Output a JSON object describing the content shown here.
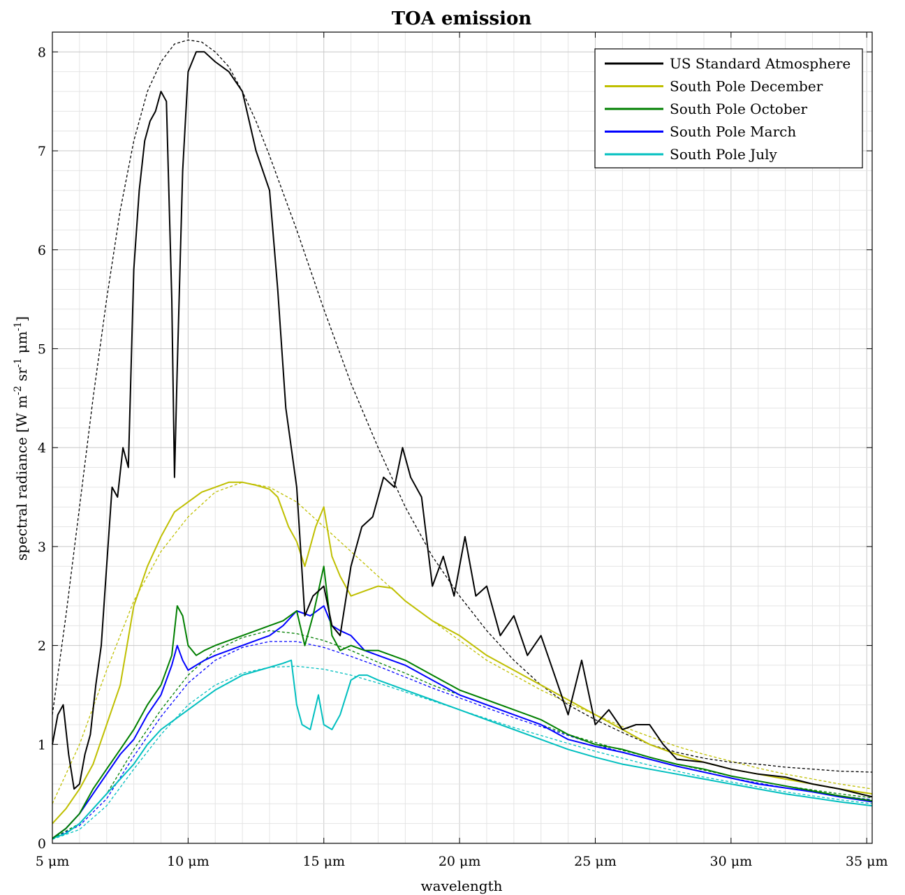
{
  "chart_data": {
    "type": "line",
    "title": "TOA emission",
    "xlabel": "wavelength",
    "ylabel": "spectral radiance [W m-2 sr-1 μm-1]",
    "ylabel_parts": [
      "spectral radiance [W m",
      "-2",
      " sr",
      "-1",
      " μm",
      "-1",
      "]"
    ],
    "xlim": [
      5,
      35.2
    ],
    "ylim": [
      0,
      8.2
    ],
    "x_ticks": [
      5,
      10,
      15,
      20,
      25,
      30,
      35
    ],
    "x_tick_labels": [
      "5 μm",
      "10 μm",
      "15 μm",
      "20 μm",
      "25 μm",
      "30 μm",
      "35 μm"
    ],
    "y_ticks": [
      0,
      1,
      2,
      3,
      4,
      5,
      6,
      7,
      8
    ],
    "y_tick_labels": [
      "0",
      "1",
      "2",
      "3",
      "4",
      "5",
      "6",
      "7",
      "8"
    ],
    "grid": true,
    "minor_grid": true,
    "legend_position": "top-right",
    "series": [
      {
        "name": "US Standard Atmosphere",
        "color": "#000000",
        "style": "solid",
        "x": [
          5.0,
          5.2,
          5.4,
          5.6,
          5.8,
          6.0,
          6.2,
          6.4,
          6.6,
          6.8,
          7.0,
          7.2,
          7.4,
          7.6,
          7.8,
          8.0,
          8.2,
          8.4,
          8.6,
          8.8,
          9.0,
          9.2,
          9.4,
          9.5,
          9.6,
          9.8,
          10.0,
          10.3,
          10.6,
          11.0,
          11.5,
          12.0,
          12.5,
          13.0,
          13.3,
          13.6,
          13.8,
          14.0,
          14.3,
          14.6,
          15.0,
          15.3,
          15.6,
          16.0,
          16.4,
          16.8,
          17.2,
          17.6,
          17.9,
          18.2,
          18.6,
          19.0,
          19.4,
          19.8,
          20.2,
          20.6,
          21.0,
          21.5,
          22.0,
          22.5,
          23.0,
          23.5,
          24.0,
          24.5,
          25.0,
          25.5,
          26.0,
          26.5,
          27.0,
          27.5,
          28.0,
          29.0,
          30.0,
          31.0,
          32.0,
          33.0,
          34.0,
          35.2
        ],
        "values": [
          1.0,
          1.3,
          1.4,
          0.9,
          0.55,
          0.6,
          0.9,
          1.1,
          1.6,
          2.0,
          2.8,
          3.6,
          3.5,
          4.0,
          3.8,
          5.8,
          6.6,
          7.1,
          7.3,
          7.4,
          7.6,
          7.5,
          5.5,
          3.7,
          4.8,
          6.8,
          7.8,
          8.0,
          8.0,
          7.9,
          7.8,
          7.6,
          7.0,
          6.6,
          5.6,
          4.4,
          4.0,
          3.6,
          2.3,
          2.5,
          2.6,
          2.2,
          2.1,
          2.8,
          3.2,
          3.3,
          3.7,
          3.6,
          4.0,
          3.7,
          3.5,
          2.6,
          2.9,
          2.5,
          3.1,
          2.5,
          2.6,
          2.1,
          2.3,
          1.9,
          2.1,
          1.7,
          1.3,
          1.85,
          1.2,
          1.35,
          1.15,
          1.2,
          1.2,
          1.0,
          0.85,
          0.82,
          0.75,
          0.7,
          0.67,
          0.6,
          0.55,
          0.47
        ]
      },
      {
        "name": "South Pole December",
        "color": "#bfbf00",
        "style": "solid",
        "x": [
          5.0,
          5.5,
          6.0,
          6.5,
          7.0,
          7.5,
          8.0,
          8.5,
          9.0,
          9.5,
          10.0,
          10.5,
          11.0,
          11.5,
          12.0,
          12.5,
          13.0,
          13.3,
          13.7,
          14.0,
          14.3,
          14.7,
          15.0,
          15.3,
          15.6,
          16.0,
          16.5,
          17.0,
          17.5,
          18.0,
          19.0,
          20.0,
          21.0,
          22.0,
          23.0,
          24.0,
          25.0,
          26.0,
          27.0,
          28.0,
          29.0,
          30.0,
          31.0,
          32.0,
          33.0,
          34.0,
          35.2
        ],
        "values": [
          0.2,
          0.35,
          0.55,
          0.8,
          1.2,
          1.6,
          2.4,
          2.8,
          3.1,
          3.35,
          3.45,
          3.55,
          3.6,
          3.65,
          3.65,
          3.62,
          3.58,
          3.5,
          3.2,
          3.05,
          2.8,
          3.2,
          3.4,
          2.9,
          2.7,
          2.5,
          2.55,
          2.6,
          2.58,
          2.45,
          2.25,
          2.1,
          1.9,
          1.75,
          1.6,
          1.45,
          1.3,
          1.15,
          1.0,
          0.9,
          0.82,
          0.75,
          0.7,
          0.65,
          0.6,
          0.55,
          0.5
        ]
      },
      {
        "name": "South Pole October",
        "color": "#007f00",
        "style": "solid",
        "x": [
          5.0,
          5.5,
          6.0,
          6.5,
          7.0,
          7.5,
          8.0,
          8.5,
          9.0,
          9.4,
          9.6,
          9.8,
          10.0,
          10.3,
          10.6,
          11.0,
          12.0,
          13.0,
          13.5,
          14.0,
          14.3,
          14.6,
          15.0,
          15.3,
          15.6,
          16.0,
          16.5,
          17.0,
          18.0,
          19.0,
          20.0,
          21.0,
          22.0,
          23.0,
          24.0,
          25.0,
          26.0,
          27.0,
          28.0,
          29.0,
          30.0,
          31.0,
          32.0,
          33.0,
          34.0,
          35.2
        ],
        "values": [
          0.05,
          0.15,
          0.3,
          0.55,
          0.75,
          0.95,
          1.15,
          1.4,
          1.6,
          1.9,
          2.4,
          2.3,
          2.0,
          1.9,
          1.95,
          2.0,
          2.1,
          2.2,
          2.25,
          2.35,
          2.0,
          2.3,
          2.8,
          2.1,
          1.95,
          2.0,
          1.95,
          1.95,
          1.85,
          1.7,
          1.55,
          1.45,
          1.35,
          1.25,
          1.1,
          1.0,
          0.95,
          0.87,
          0.8,
          0.75,
          0.68,
          0.63,
          0.58,
          0.53,
          0.48,
          0.43
        ]
      },
      {
        "name": "South Pole March",
        "color": "#0000ff",
        "style": "solid",
        "x": [
          5.0,
          5.5,
          6.0,
          6.5,
          7.0,
          7.5,
          8.0,
          8.5,
          9.0,
          9.4,
          9.6,
          9.8,
          10.0,
          10.3,
          10.6,
          11.0,
          12.0,
          13.0,
          13.5,
          14.0,
          14.5,
          15.0,
          15.3,
          15.6,
          16.0,
          16.5,
          17.0,
          18.0,
          19.0,
          20.0,
          21.0,
          22.0,
          23.0,
          24.0,
          25.0,
          26.0,
          27.0,
          28.0,
          29.0,
          30.0,
          31.0,
          32.0,
          33.0,
          34.0,
          35.2
        ],
        "values": [
          0.05,
          0.15,
          0.3,
          0.5,
          0.7,
          0.9,
          1.05,
          1.3,
          1.5,
          1.8,
          2.0,
          1.85,
          1.75,
          1.8,
          1.85,
          1.9,
          2.0,
          2.1,
          2.2,
          2.35,
          2.3,
          2.4,
          2.2,
          2.15,
          2.1,
          1.95,
          1.9,
          1.8,
          1.65,
          1.5,
          1.4,
          1.3,
          1.2,
          1.05,
          0.98,
          0.92,
          0.85,
          0.78,
          0.72,
          0.66,
          0.6,
          0.56,
          0.52,
          0.47,
          0.42
        ]
      },
      {
        "name": "South Pole July",
        "color": "#00bfbf",
        "style": "solid",
        "x": [
          5.0,
          5.5,
          6.0,
          6.5,
          7.0,
          7.5,
          8.0,
          8.5,
          9.0,
          9.5,
          10.0,
          10.5,
          11.0,
          12.0,
          13.0,
          13.5,
          13.8,
          14.0,
          14.2,
          14.5,
          14.8,
          15.0,
          15.3,
          15.6,
          16.0,
          16.3,
          16.6,
          17.0,
          18.0,
          19.0,
          20.0,
          21.0,
          22.0,
          23.0,
          24.0,
          25.0,
          26.0,
          27.0,
          28.0,
          29.0,
          30.0,
          31.0,
          32.0,
          33.0,
          34.0,
          35.2
        ],
        "values": [
          0.05,
          0.1,
          0.2,
          0.35,
          0.5,
          0.65,
          0.8,
          1.0,
          1.15,
          1.25,
          1.35,
          1.45,
          1.55,
          1.7,
          1.78,
          1.82,
          1.85,
          1.4,
          1.2,
          1.15,
          1.5,
          1.2,
          1.15,
          1.3,
          1.65,
          1.7,
          1.7,
          1.65,
          1.55,
          1.45,
          1.35,
          1.25,
          1.15,
          1.05,
          0.95,
          0.87,
          0.8,
          0.75,
          0.7,
          0.65,
          0.6,
          0.55,
          0.5,
          0.46,
          0.42,
          0.38
        ]
      },
      {
        "name": "",
        "color": "#000000",
        "style": "dashed",
        "x": [
          5.0,
          5.5,
          6.0,
          6.5,
          7.0,
          7.5,
          8.0,
          8.5,
          9.0,
          9.5,
          10.0,
          10.5,
          11.0,
          11.5,
          12.0,
          12.5,
          13.0,
          14.0,
          15.0,
          16.0,
          17.0,
          18.0,
          19.0,
          20.0,
          21.0,
          22.0,
          23.0,
          24.0,
          25.0,
          26.0,
          27.0,
          28.0,
          29.0,
          30.0,
          31.0,
          32.0,
          33.0,
          34.0,
          35.2
        ],
        "values": [
          1.3,
          2.3,
          3.4,
          4.5,
          5.5,
          6.4,
          7.1,
          7.6,
          7.9,
          8.08,
          8.12,
          8.1,
          8.0,
          7.85,
          7.6,
          7.3,
          6.95,
          6.2,
          5.4,
          4.65,
          4.0,
          3.4,
          2.9,
          2.5,
          2.15,
          1.85,
          1.6,
          1.4,
          1.25,
          1.12,
          1.0,
          0.92,
          0.86,
          0.82,
          0.8,
          0.77,
          0.75,
          0.73,
          0.72
        ]
      },
      {
        "name": "",
        "color": "#bfbf00",
        "style": "dashed",
        "x": [
          5.0,
          6.0,
          7.0,
          8.0,
          9.0,
          10.0,
          11.0,
          12.0,
          13.0,
          14.0,
          15.0,
          16.0,
          17.0,
          18.0,
          19.0,
          20.0,
          21.0,
          22.0,
          23.0,
          24.0,
          25.0,
          26.0,
          27.0,
          28.0,
          29.0,
          30.0,
          31.0,
          32.0,
          33.0,
          34.0,
          35.2
        ],
        "values": [
          0.4,
          1.0,
          1.75,
          2.45,
          2.95,
          3.3,
          3.55,
          3.65,
          3.6,
          3.45,
          3.2,
          2.95,
          2.7,
          2.45,
          2.25,
          2.05,
          1.85,
          1.7,
          1.55,
          1.42,
          1.3,
          1.18,
          1.08,
          0.98,
          0.9,
          0.83,
          0.76,
          0.7,
          0.65,
          0.6,
          0.55
        ]
      },
      {
        "name": "",
        "color": "#007f00",
        "style": "dashed",
        "x": [
          5.0,
          6.0,
          7.0,
          8.0,
          9.0,
          10.0,
          11.0,
          12.0,
          13.0,
          14.0,
          15.0,
          16.0,
          17.0,
          18.0,
          19.0,
          20.0,
          21.0,
          22.0,
          23.0,
          24.0,
          25.0,
          26.0,
          27.0,
          28.0,
          29.0,
          30.0,
          31.0,
          32.0,
          33.0,
          34.0,
          35.2
        ],
        "values": [
          0.05,
          0.2,
          0.5,
          0.95,
          1.35,
          1.7,
          1.95,
          2.08,
          2.15,
          2.12,
          2.05,
          1.95,
          1.83,
          1.72,
          1.6,
          1.5,
          1.4,
          1.3,
          1.2,
          1.1,
          1.02,
          0.94,
          0.87,
          0.8,
          0.74,
          0.68,
          0.63,
          0.58,
          0.54,
          0.5,
          0.46
        ]
      },
      {
        "name": "",
        "color": "#0000ff",
        "style": "dashed",
        "x": [
          5.0,
          6.0,
          7.0,
          8.0,
          9.0,
          10.0,
          11.0,
          12.0,
          13.0,
          14.0,
          15.0,
          16.0,
          17.0,
          18.0,
          19.0,
          20.0,
          21.0,
          22.0,
          23.0,
          24.0,
          25.0,
          26.0,
          27.0,
          28.0,
          29.0,
          30.0,
          31.0,
          32.0,
          33.0,
          34.0,
          35.2
        ],
        "values": [
          0.05,
          0.18,
          0.45,
          0.88,
          1.28,
          1.62,
          1.85,
          1.98,
          2.04,
          2.04,
          1.98,
          1.89,
          1.79,
          1.68,
          1.57,
          1.47,
          1.37,
          1.27,
          1.18,
          1.09,
          1.0,
          0.92,
          0.85,
          0.78,
          0.72,
          0.66,
          0.61,
          0.56,
          0.52,
          0.48,
          0.44
        ]
      },
      {
        "name": "",
        "color": "#00bfbf",
        "style": "dashed",
        "x": [
          5.0,
          6.0,
          7.0,
          8.0,
          9.0,
          10.0,
          11.0,
          12.0,
          13.0,
          14.0,
          15.0,
          16.0,
          17.0,
          18.0,
          19.0,
          20.0,
          21.0,
          22.0,
          23.0,
          24.0,
          25.0,
          26.0,
          27.0,
          28.0,
          29.0,
          30.0,
          31.0,
          32.0,
          33.0,
          34.0,
          35.2
        ],
        "values": [
          0.04,
          0.14,
          0.38,
          0.75,
          1.1,
          1.4,
          1.6,
          1.72,
          1.78,
          1.79,
          1.76,
          1.7,
          1.62,
          1.53,
          1.44,
          1.35,
          1.26,
          1.17,
          1.09,
          1.01,
          0.93,
          0.86,
          0.79,
          0.73,
          0.67,
          0.62,
          0.57,
          0.52,
          0.48,
          0.44,
          0.4
        ]
      }
    ]
  }
}
